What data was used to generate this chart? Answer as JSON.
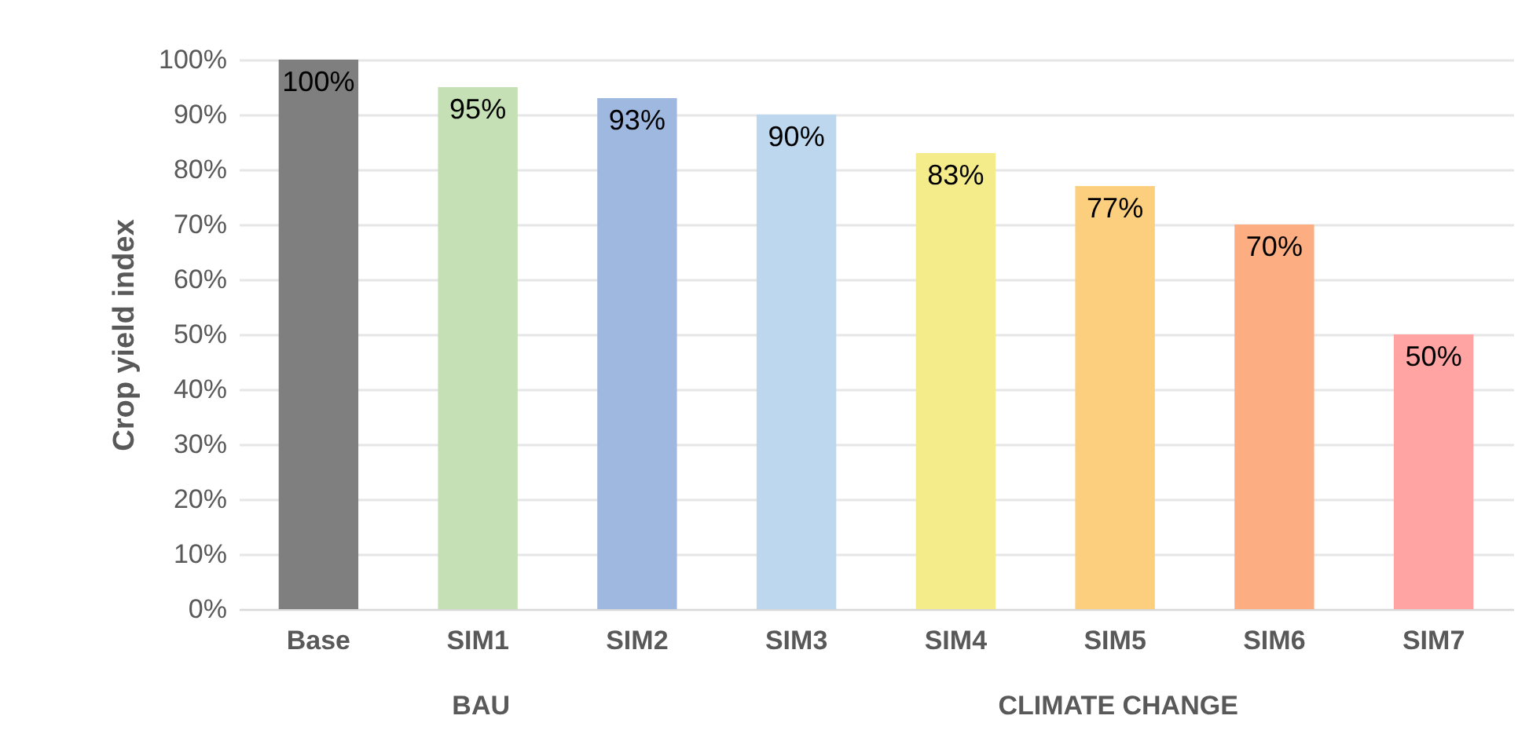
{
  "chart_data": {
    "type": "bar",
    "ylabel": "Crop yield index",
    "categories": [
      "Base",
      "SIM1",
      "SIM2",
      "SIM3",
      "SIM4",
      "SIM5",
      "SIM6",
      "SIM7"
    ],
    "values": [
      100,
      95,
      93,
      90,
      83,
      77,
      70,
      50
    ],
    "colors": [
      "#7f7f7f",
      "#c5e0b4",
      "#9fb8e0",
      "#bdd7ee",
      "#f4ec8a",
      "#fccf7e",
      "#fcae82",
      "#ffa3a3"
    ],
    "value_labels": [
      "100%",
      "95%",
      "93%",
      "90%",
      "83%",
      "77%",
      "70%",
      "50%"
    ],
    "ylim": [
      0,
      100
    ],
    "yticks": [
      {
        "value": 0,
        "label": "0%"
      },
      {
        "value": 10,
        "label": "10%"
      },
      {
        "value": 20,
        "label": "20%"
      },
      {
        "value": 30,
        "label": "30%"
      },
      {
        "value": 40,
        "label": "40%"
      },
      {
        "value": 50,
        "label": "50%"
      },
      {
        "value": 60,
        "label": "60%"
      },
      {
        "value": 70,
        "label": "70%"
      },
      {
        "value": 80,
        "label": "80%"
      },
      {
        "value": 90,
        "label": "90%"
      },
      {
        "value": 100,
        "label": "100%"
      }
    ],
    "grid": "y",
    "annotations": [
      "BAU",
      "CLIMATE CHANGE"
    ]
  }
}
